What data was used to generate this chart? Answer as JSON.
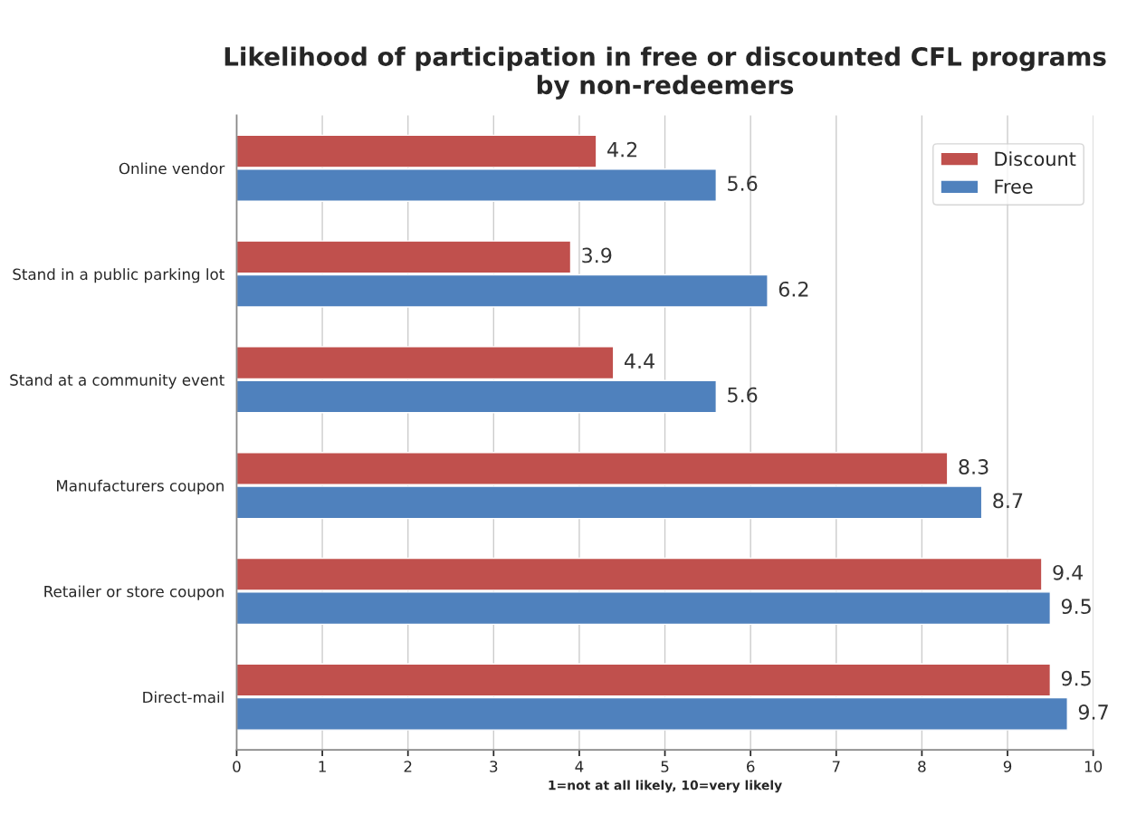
{
  "chart_data": {
    "type": "bar",
    "orientation": "horizontal",
    "title": "Likelihood of participation in free or discounted CFL programs by non-redeemers",
    "xlabel": "1=not at all likely, 10=very likely",
    "categories": [
      "Online vendor",
      "Stand in a public parking lot",
      "Stand at a community event",
      "Manufacturers coupon",
      "Retailer or store coupon",
      "Direct-mail"
    ],
    "series": [
      {
        "name": "Discount",
        "color": "#c0504d",
        "values": [
          4.2,
          3.9,
          4.4,
          8.3,
          9.4,
          9.5
        ]
      },
      {
        "name": "Free",
        "color": "#4f81bd",
        "values": [
          5.6,
          6.2,
          5.6,
          8.7,
          9.5,
          9.7
        ]
      }
    ],
    "xlim": [
      0,
      10
    ],
    "xticks": [
      0,
      1,
      2,
      3,
      4,
      5,
      6,
      7,
      8,
      9,
      10
    ],
    "grid": "x",
    "legend": "top right",
    "data_labels": true
  }
}
